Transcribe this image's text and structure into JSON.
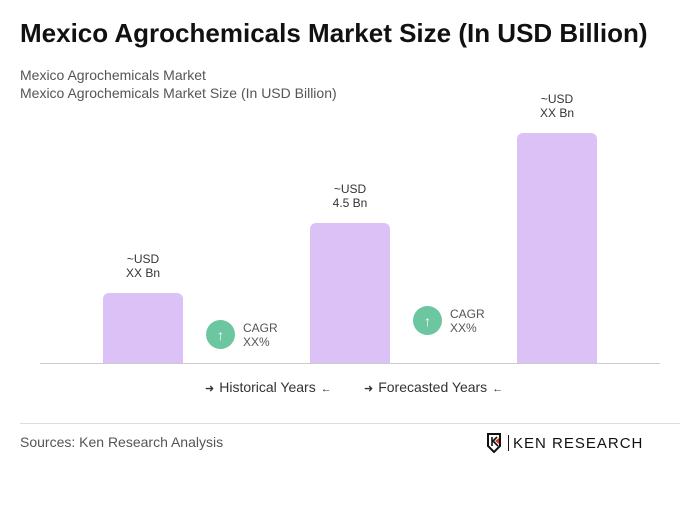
{
  "title": "Mexico Agrochemicals Market Size (In USD Billion)",
  "subtitle1": "Mexico Agrochemicals Market",
  "subtitle2": "Mexico Agrochemicals Market Size (In USD Billion)",
  "chart_data": {
    "type": "bar",
    "values": [
      2.25,
      4.5,
      7.4
    ],
    "data_labels": [
      [
        "~USD",
        "XX Bn"
      ],
      [
        "~USD",
        "4.5 Bn"
      ],
      [
        "~USD",
        "XX Bn"
      ]
    ],
    "color": "#dcc1f6",
    "cagr": [
      {
        "label": "CAGR",
        "value": "XX%"
      },
      {
        "label": "CAGR",
        "value": "XX%"
      }
    ],
    "cagr_color": "#6cc6a0",
    "legend": [
      "Historical Years",
      "Forecasted Years"
    ]
  },
  "sources": "Sources: Ken Research Analysis",
  "logo": "KEN RESEARCH"
}
